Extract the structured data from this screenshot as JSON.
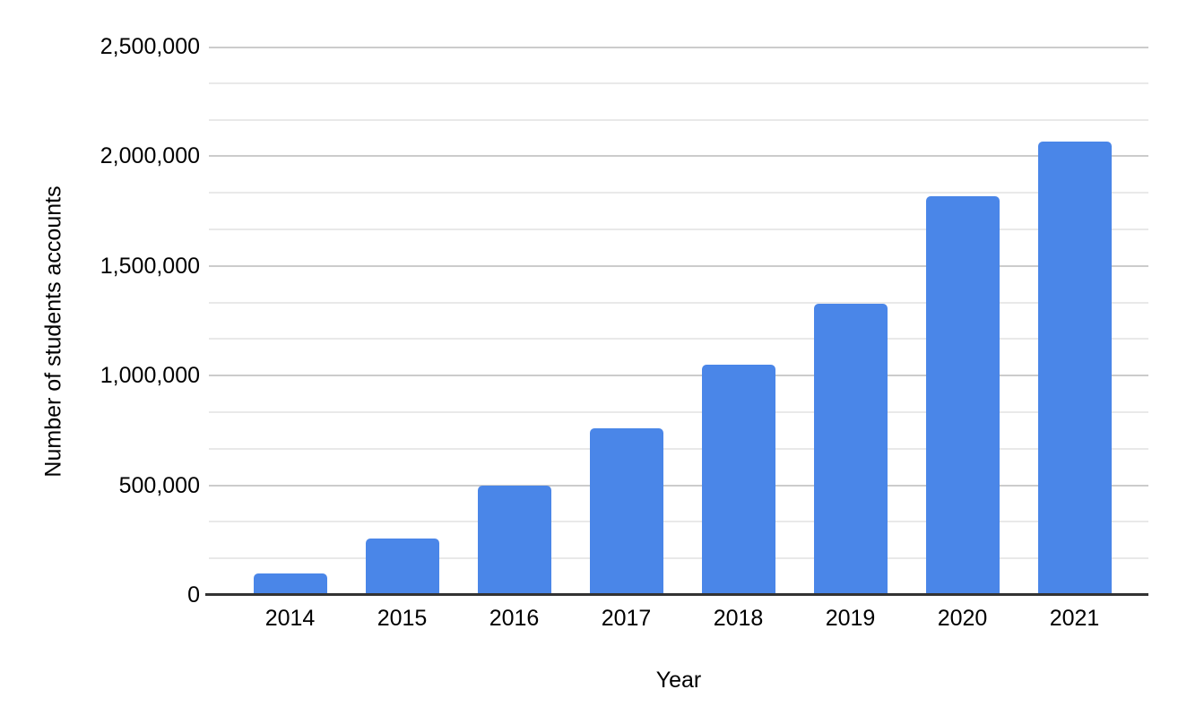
{
  "chart_data": {
    "type": "bar",
    "title": "",
    "categories": [
      "2014",
      "2015",
      "2016",
      "2017",
      "2018",
      "2019",
      "2020",
      "2021"
    ],
    "values": [
      90000,
      250000,
      490000,
      750000,
      1040000,
      1320000,
      1810000,
      2060000
    ],
    "xlabel": "Year",
    "ylabel": "Number of students accounts",
    "ylim": [
      0,
      2500000
    ],
    "y_ticks": [
      {
        "value": 0,
        "label": "0"
      },
      {
        "value": 500000,
        "label": "500,000"
      },
      {
        "value": 1000000,
        "label": "1,000,000"
      },
      {
        "value": 1500000,
        "label": "1,500,000"
      },
      {
        "value": 2000000,
        "label": "2,000,000"
      },
      {
        "value": 2500000,
        "label": "2,500,000"
      }
    ],
    "minor_gridlines_between_major": 2,
    "grid": "horizontal",
    "legend_position": "none",
    "colors": {
      "bar": "#4a86e8",
      "major_gridline": "#cccccc",
      "minor_gridline": "#e9e9e9",
      "axis_line": "#333333",
      "text": "#000000",
      "background": "#ffffff"
    }
  }
}
